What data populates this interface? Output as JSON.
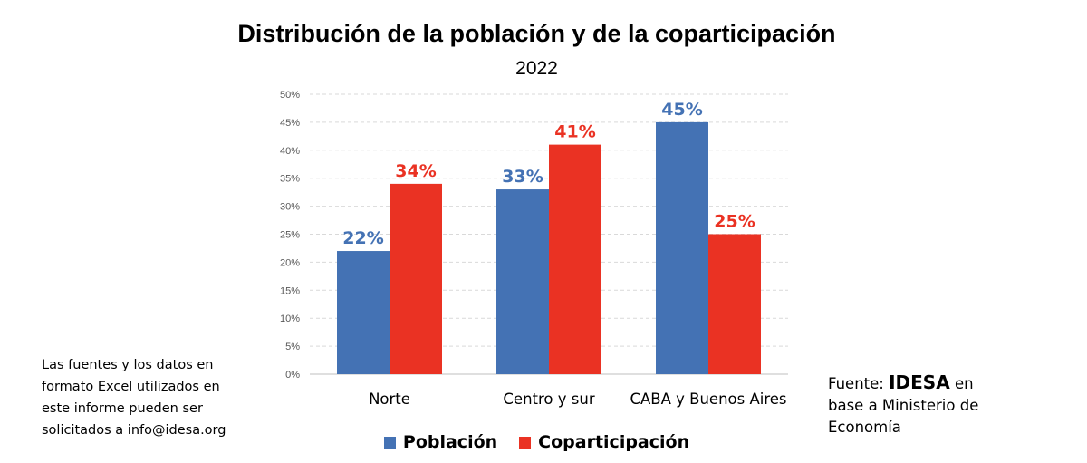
{
  "chart_data": {
    "type": "bar",
    "title": "Distribución de la población y de la coparticipación",
    "subtitle": "2022",
    "categories": [
      "Norte",
      "Centro y sur",
      "CABA y Buenos Aires"
    ],
    "series": [
      {
        "name": "Población",
        "values": [
          22,
          33,
          45
        ],
        "labels": [
          "22%",
          "33%",
          "45%"
        ],
        "color": "#4472b4"
      },
      {
        "name": "Coparticipación",
        "values": [
          34,
          41,
          25
        ],
        "labels": [
          "34%",
          "41%",
          "25%"
        ],
        "color": "#ea3223"
      }
    ],
    "yticks": [
      "0%",
      "5%",
      "10%",
      "15%",
      "20%",
      "25%",
      "30%",
      "35%",
      "40%",
      "45%",
      "50%"
    ],
    "ylim": [
      0,
      50
    ],
    "ystep": 5,
    "grid": true,
    "legend": "bottom"
  },
  "note": {
    "line1": "Las fuentes y los datos en",
    "line2": "formato Excel utilizados en",
    "line3": "este informe pueden ser",
    "line4": "solicitados a info@idesa.org"
  },
  "source": {
    "prefix": "Fuente:",
    "brand": "IDESA",
    "suffix": "en",
    "line2": "base a Ministerio de",
    "line3": "Economía"
  }
}
